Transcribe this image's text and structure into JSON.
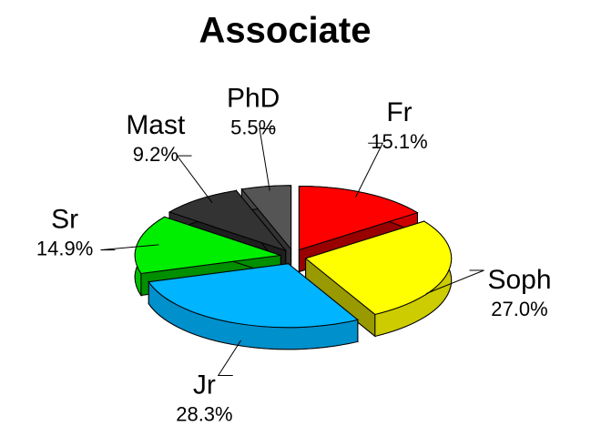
{
  "chart_data": {
    "type": "pie",
    "title": "Associate",
    "categories": [
      "Fr",
      "Soph",
      "Jr",
      "Sr",
      "Mast",
      "PhD"
    ],
    "values": [
      15.1,
      27.0,
      28.3,
      14.9,
      9.2,
      5.5
    ],
    "value_labels": [
      "15.1%",
      "27.0%",
      "28.3%",
      "14.9%",
      "9.2%",
      "5.5%"
    ],
    "colors": [
      "#ff0000",
      "#ffff00",
      "#00b4ff",
      "#00ee00",
      "#333333",
      "#555555"
    ]
  }
}
